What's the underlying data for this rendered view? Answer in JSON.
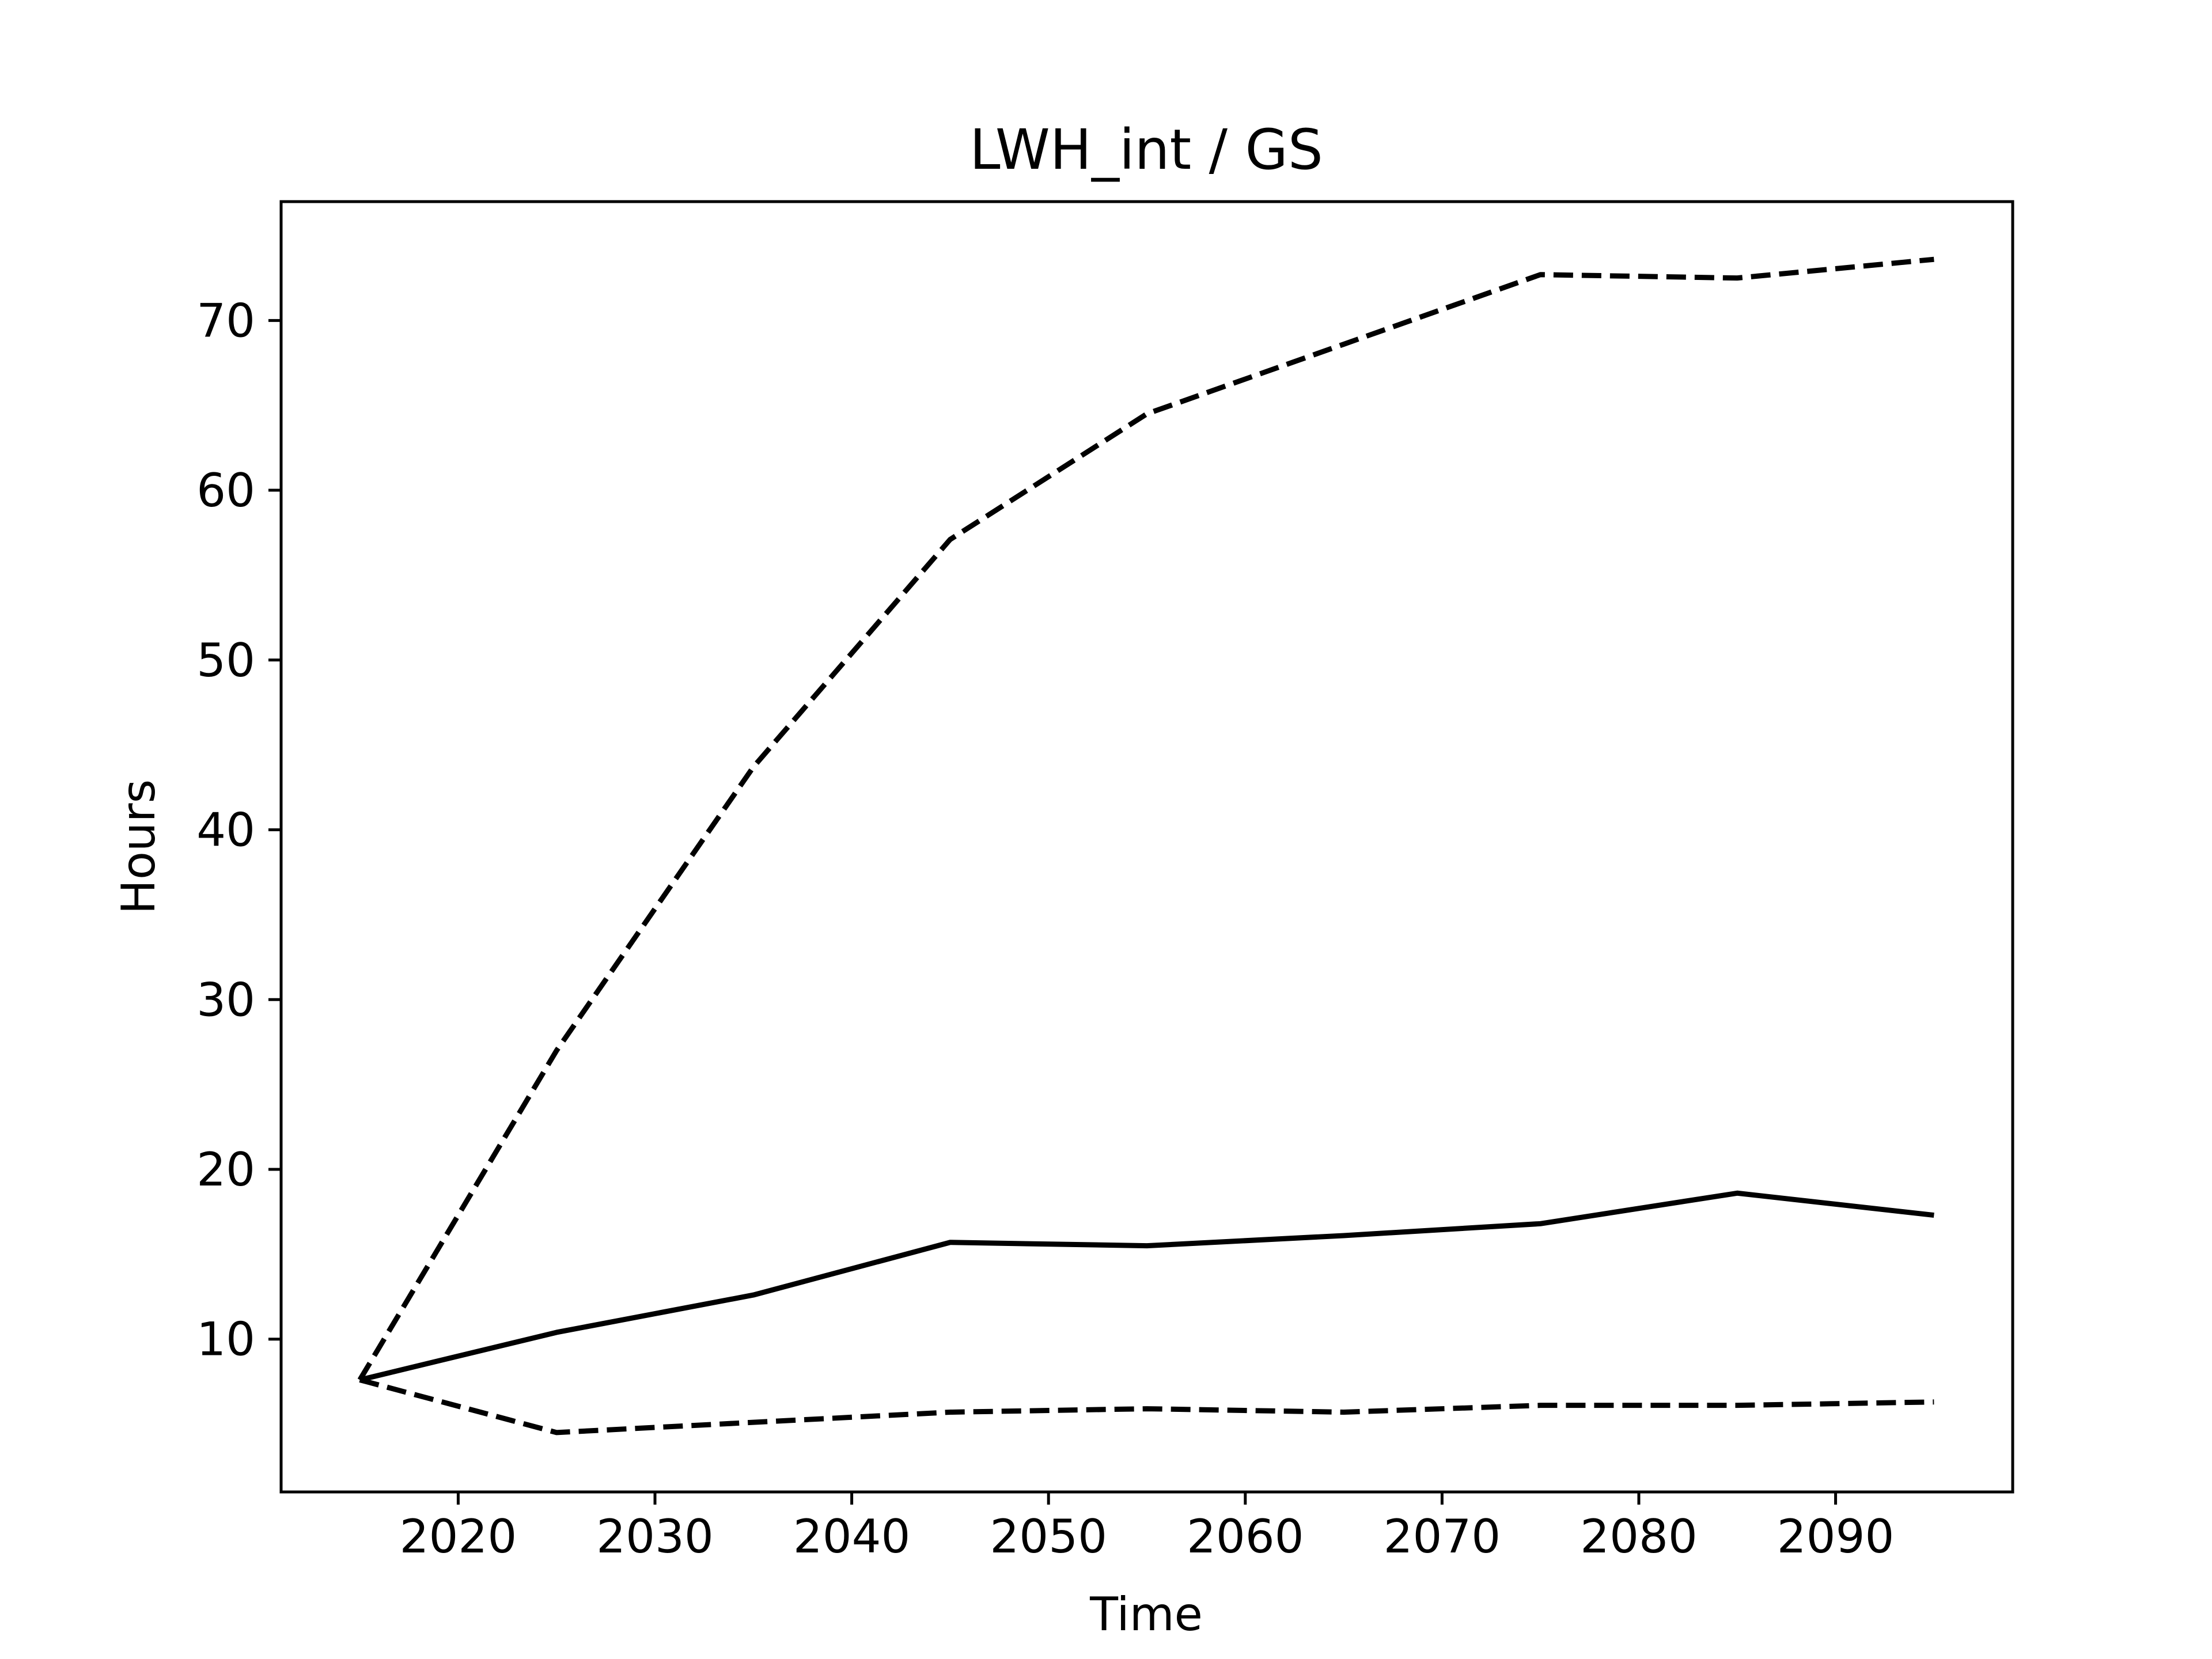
{
  "chart_data": {
    "type": "line",
    "title": "LWH_int / GS",
    "xlabel": "Time",
    "ylabel": "Hours",
    "xlim": [
      2011,
      2099
    ],
    "ylim": [
      1.0,
      77.0
    ],
    "xticks": [
      2020,
      2030,
      2040,
      2050,
      2060,
      2070,
      2080,
      2090
    ],
    "yticks": [
      10,
      20,
      30,
      40,
      50,
      60,
      70
    ],
    "grid": false,
    "legend": "none",
    "series": [
      {
        "style": "solid",
        "color": "#000000",
        "x": [
          2015,
          2025,
          2035,
          2045,
          2055,
          2065,
          2075,
          2085,
          2095
        ],
        "y": [
          7.6,
          10.4,
          12.6,
          15.7,
          15.5,
          16.1,
          16.8,
          18.6,
          17.3
        ]
      },
      {
        "style": "dashed",
        "color": "#000000",
        "x": [
          2015,
          2025,
          2035,
          2045,
          2055,
          2065,
          2075,
          2085,
          2095
        ],
        "y": [
          7.6,
          27.0,
          43.7,
          57.1,
          64.5,
          68.6,
          72.7,
          72.5,
          73.6
        ]
      },
      {
        "style": "dashed",
        "color": "#000000",
        "x": [
          2015,
          2025,
          2035,
          2045,
          2055,
          2065,
          2075,
          2085,
          2095
        ],
        "y": [
          7.6,
          4.5,
          5.1,
          5.7,
          5.9,
          5.7,
          6.1,
          6.1,
          6.3
        ]
      }
    ]
  }
}
